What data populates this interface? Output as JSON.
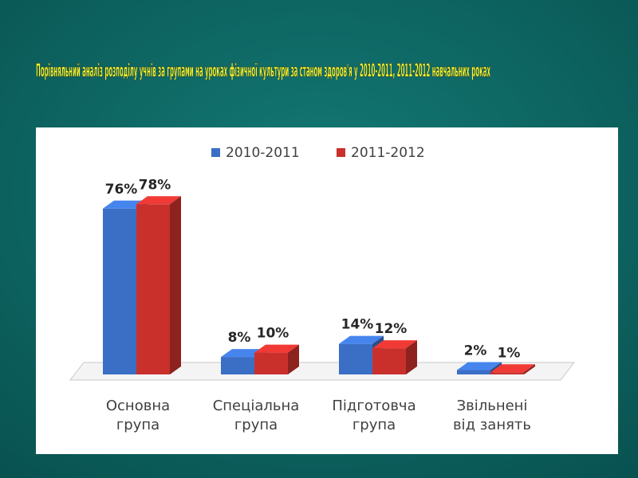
{
  "chart_data": {
    "type": "bar3d",
    "title": "Порівняльний аналіз розподілу учнів за групами на уроках фізичної культури за станом здоров'я у 2010-2011, 2011-2012 навчальних роках",
    "categories": [
      "Основна\nгрупа",
      "Спеціальна\nгрупа",
      "Підготовча\nгрупа",
      "Звільнені\nвід занять"
    ],
    "series": [
      {
        "name": "2010-2011",
        "color": "#3b6fc6",
        "values": [
          76,
          8,
          14,
          2
        ],
        "value_labels": [
          "76%",
          "8%",
          "14%",
          "2%"
        ]
      },
      {
        "name": "2011-2012",
        "color": "#c9302c",
        "values": [
          78,
          10,
          12,
          1
        ],
        "value_labels": [
          "78%",
          "10%",
          "12%",
          "1%"
        ]
      }
    ],
    "legend": "top"
  }
}
